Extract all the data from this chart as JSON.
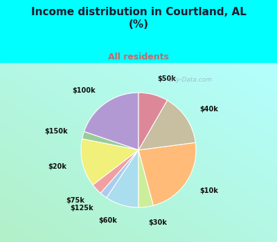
{
  "title": "Income distribution in Courtland, AL\n(%)",
  "subtitle": "All residents",
  "title_color": "#1a1a2e",
  "subtitle_color": "#cc6666",
  "bg_top_color": "#00ffff",
  "watermark": "City-Data.com",
  "slices": [
    {
      "label": "$100k",
      "value": 19,
      "color": "#b399d4"
    },
    {
      "label": "$150k",
      "value": 2,
      "color": "#99cc99"
    },
    {
      "label": "$20k",
      "value": 13,
      "color": "#f0f07a"
    },
    {
      "label": "$75k",
      "value": 3,
      "color": "#f0a0a0"
    },
    {
      "label": "$125k",
      "value": 2,
      "color": "#aaccee"
    },
    {
      "label": "$60k",
      "value": 9,
      "color": "#aaddee"
    },
    {
      "label": "$30k",
      "value": 4,
      "color": "#ccee99"
    },
    {
      "label": "$10k",
      "value": 22,
      "color": "#ffbb77"
    },
    {
      "label": "$40k",
      "value": 14,
      "color": "#c8bea0"
    },
    {
      "label": "$50k",
      "value": 8,
      "color": "#dd8899"
    }
  ],
  "startangle": 90,
  "figsize": [
    4.0,
    3.5
  ],
  "dpi": 100
}
